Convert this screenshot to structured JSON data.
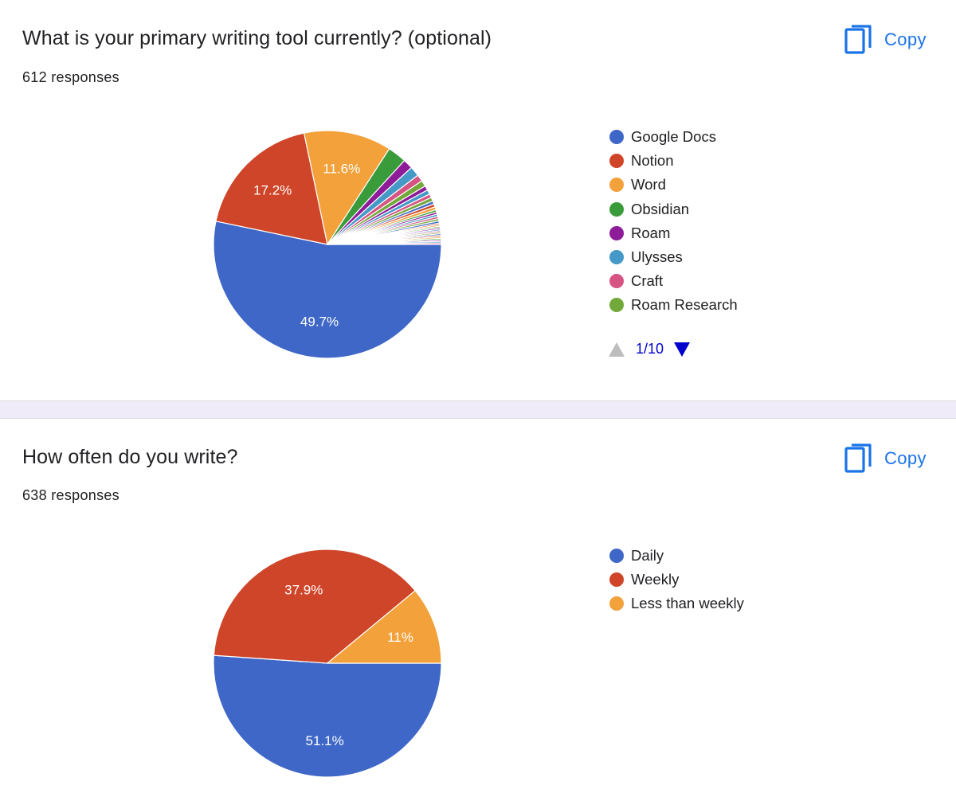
{
  "copy_label": "Copy",
  "icons": {
    "copy": "copy-icon",
    "prev": "triangle-up-icon",
    "next": "triangle-down-icon"
  },
  "questions": [
    {
      "title": "What is your primary writing tool currently? (optional)",
      "responses": "612 responses",
      "legend_page": "1/10",
      "chart_data": {
        "type": "pie",
        "categories": [
          "Google Docs",
          "Notion",
          "Word",
          "Obsidian",
          "Roam",
          "Ulysses",
          "Craft",
          "Roam Research"
        ],
        "values": [
          49.7,
          17.2,
          11.6,
          2.5,
          1.3,
          1.3,
          0.9,
          0.8
        ],
        "labels": [
          "49.7%",
          "17.2%",
          "11.6%",
          "",
          "",
          "",
          "",
          ""
        ],
        "other_slices": [
          0.6,
          0.6,
          0.5,
          0.5,
          0.4,
          0.4,
          0.4,
          0.3,
          0.3,
          0.3,
          0.3,
          0.3,
          0.3,
          0.2,
          0.2,
          0.2,
          0.2,
          0.2,
          0.2,
          0.2,
          0.2,
          0.2,
          0.2,
          0.2,
          0.2,
          0.2,
          0.2
        ],
        "colors": [
          "#3f67c7",
          "#cf4529",
          "#f2a13b",
          "#3a9b3a",
          "#8e1c99",
          "#4599c6",
          "#d65481",
          "#72a93a"
        ],
        "other_colors": [
          "#8e1c99",
          "#4599c6",
          "#d65481",
          "#72a93a",
          "#3f67c7",
          "#cf4529",
          "#f2a13b",
          "#3a9b3a"
        ],
        "legend_position": "right"
      }
    },
    {
      "title": "How often do you write?",
      "responses": "638 responses",
      "chart_data": {
        "type": "pie",
        "categories": [
          "Daily",
          "Weekly",
          "Less than weekly"
        ],
        "values": [
          51.1,
          37.9,
          11
        ],
        "labels": [
          "51.1%",
          "37.9%",
          "11%"
        ],
        "colors": [
          "#3f67c7",
          "#cf4529",
          "#f2a13b"
        ],
        "legend_position": "right"
      }
    }
  ]
}
